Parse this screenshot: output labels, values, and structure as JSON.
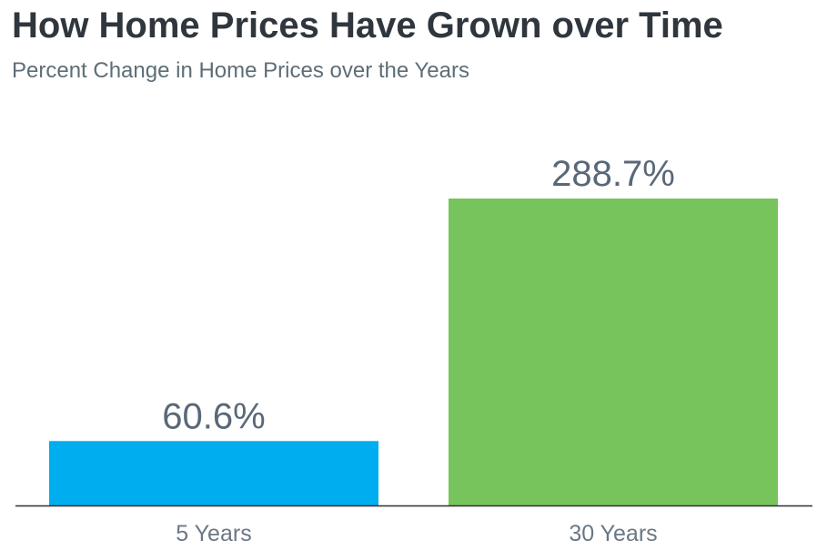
{
  "header": {
    "title": "How Home Prices Have Grown over Time",
    "subtitle": "Percent Change in Home Prices over the Years"
  },
  "chart_data": {
    "type": "bar",
    "title": "How Home Prices Have Grown over Time",
    "subtitle": "Percent Change in Home Prices over the Years",
    "categories": [
      "5 Years",
      "30 Years"
    ],
    "values": [
      60.6,
      288.7
    ],
    "value_labels": [
      "60.6%",
      "288.7%"
    ],
    "colors": [
      "#00adee",
      "#77c35c"
    ],
    "ylim": [
      0,
      288.7
    ],
    "grid": false,
    "legend": "none"
  }
}
